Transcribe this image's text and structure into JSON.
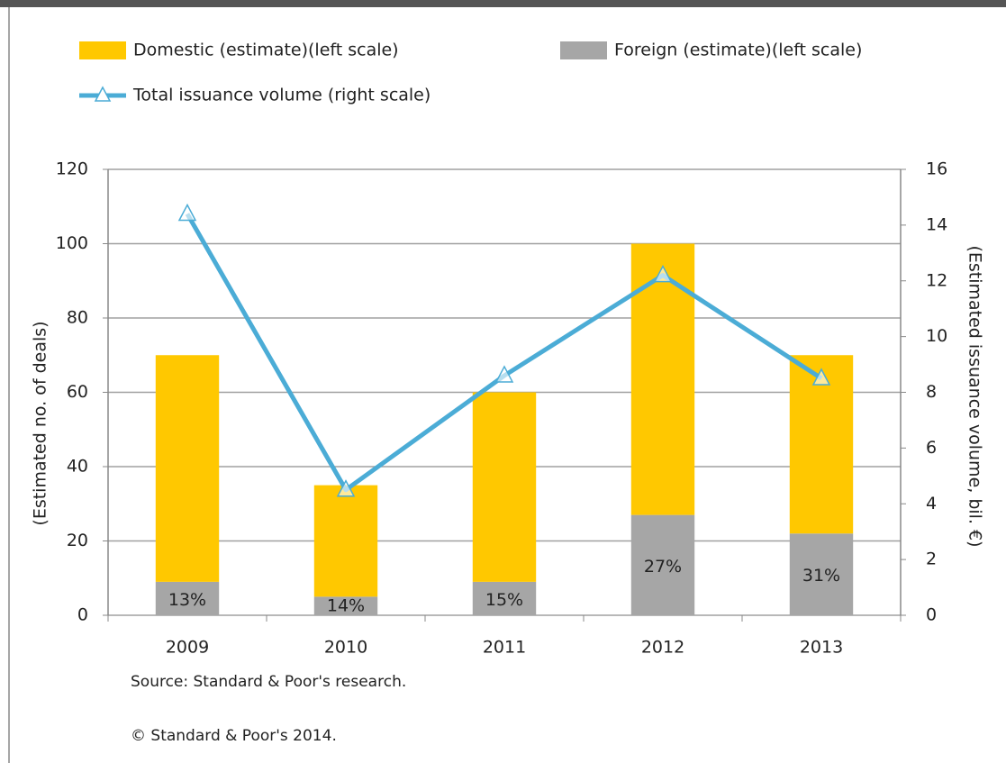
{
  "chart_data": {
    "type": "bar",
    "stacked": true,
    "categories": [
      "2009",
      "2010",
      "2011",
      "2012",
      "2013"
    ],
    "series": [
      {
        "name": "Domestic (estimate)(left scale)",
        "color": "#ffc800",
        "values": [
          61,
          30,
          51,
          73,
          48
        ]
      },
      {
        "name": "Foreign (estimate)(left scale)",
        "color": "#a6a6a6",
        "values": [
          9,
          5,
          9,
          27,
          22
        ]
      },
      {
        "name": "Total issuance volume (right scale)",
        "type": "line",
        "axis": "y2",
        "color": "#4bacd6",
        "values": [
          14.4,
          4.5,
          8.6,
          12.2,
          8.5
        ]
      }
    ],
    "bar_labels": [
      "13%",
      "14%",
      "15%",
      "27%",
      "31%"
    ],
    "ylim": [
      0,
      120
    ],
    "yticks": [
      0,
      20,
      40,
      60,
      80,
      100,
      120
    ],
    "y2lim": [
      0,
      16
    ],
    "y2ticks": [
      0,
      2,
      4,
      6,
      8,
      10,
      12,
      14,
      16
    ],
    "ylabel": "(Estimated no. of deals)",
    "y2label": "(Estimated issuance volume, bil. €)",
    "grid": true,
    "source": "Source: Standard & Poor's research.",
    "copyright": "© Standard & Poor's 2014."
  }
}
